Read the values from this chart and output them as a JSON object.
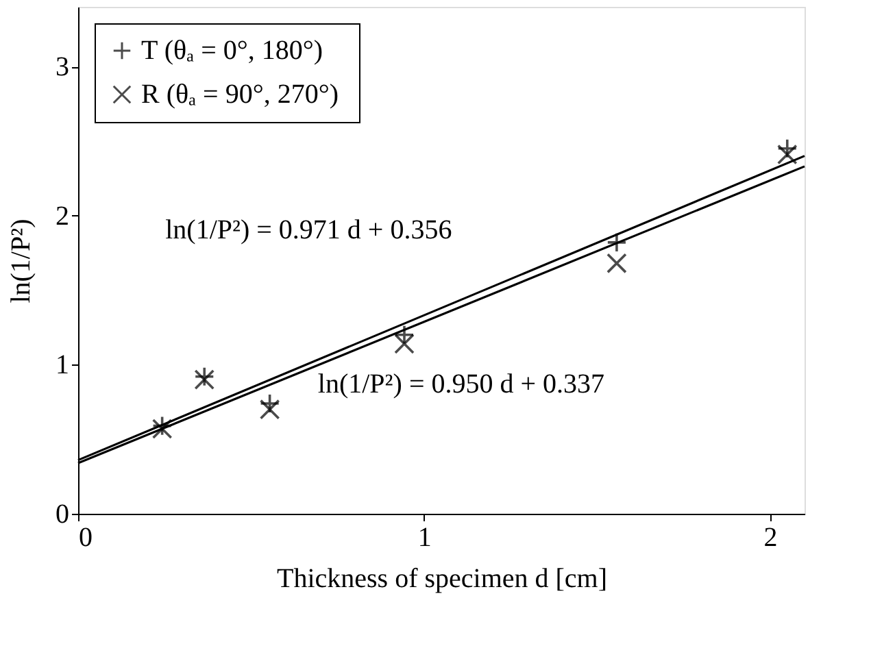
{
  "chart_data": {
    "type": "scatter",
    "xlabel": "Thickness of specimen d  [cm]",
    "ylabel": "ln(1/P²)",
    "xlim": [
      0,
      2.1
    ],
    "ylim": [
      0,
      3.4
    ],
    "xticks": [
      0,
      1,
      2
    ],
    "yticks": [
      0,
      1,
      2,
      3
    ],
    "grid": false,
    "legend": "top left",
    "series": [
      {
        "name": "T  (θₐ =  0°, 180°)",
        "color": "#000000",
        "marker": "cross",
        "x": [
          0.243,
          0.365,
          0.554,
          0.943,
          1.557,
          2.05
        ],
        "values": [
          0.59,
          0.92,
          0.74,
          1.2,
          1.82,
          2.45
        ]
      },
      {
        "name": "R  (θₐ = 90°, 270°)",
        "color": "#000000",
        "marker": "x",
        "x": [
          0.243,
          0.365,
          0.554,
          0.943,
          1.557,
          2.05
        ],
        "values": [
          0.57,
          0.9,
          0.7,
          1.14,
          1.68,
          2.41
        ]
      },
      {
        "type": "line",
        "color": "#000000",
        "x": [
          0,
          2.1
        ],
        "values": [
          0.36,
          2.4
        ]
      },
      {
        "type": "line",
        "color": "#000000",
        "x": [
          0,
          2.1
        ],
        "values": [
          0.34,
          2.33
        ]
      }
    ],
    "annotations": [
      "ln(1/P²) = 0.971 d + 0.356",
      "ln(1/P²) = 0.950 d + 0.337"
    ]
  }
}
